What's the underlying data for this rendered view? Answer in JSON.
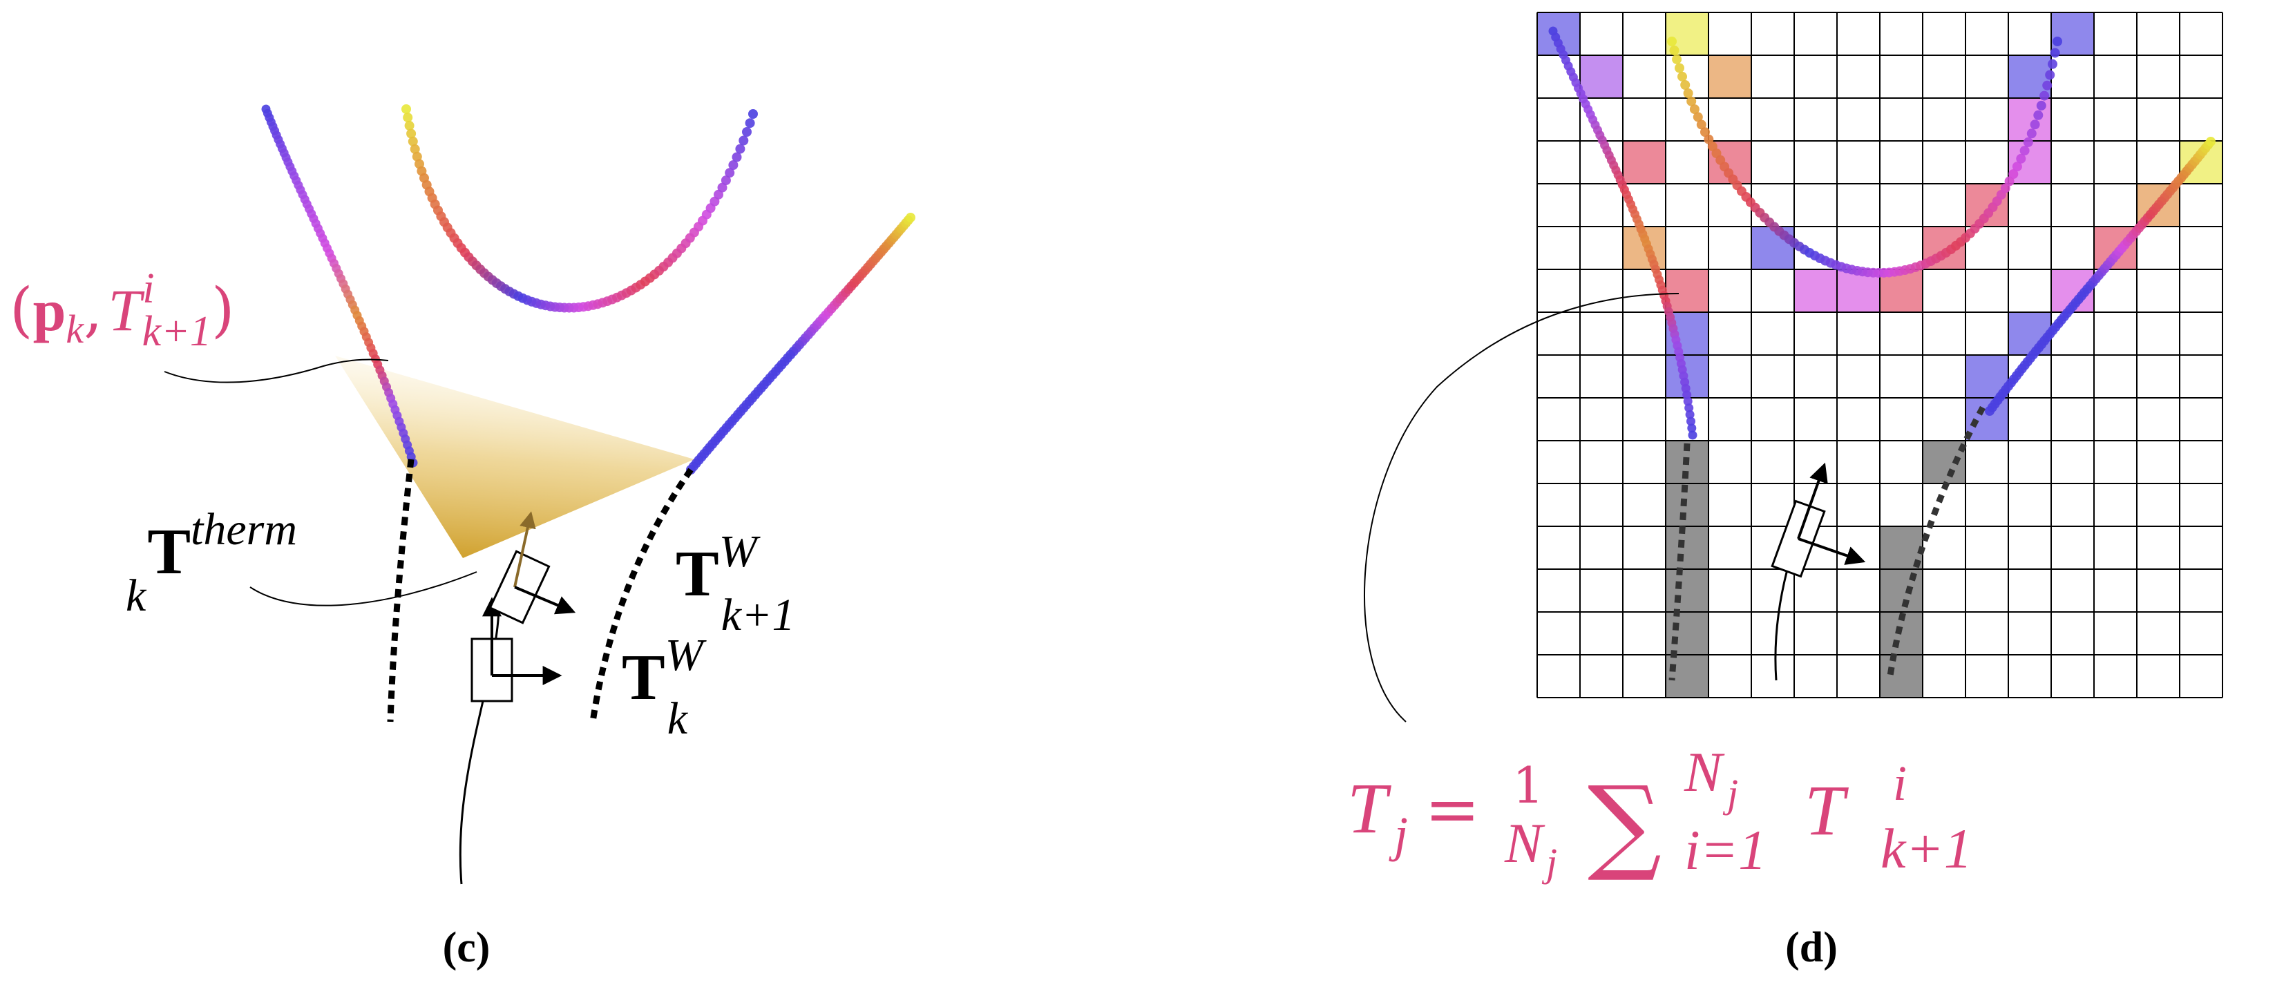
{
  "panels": [
    {
      "id": "c",
      "caption": "(c)"
    },
    {
      "id": "d",
      "caption": "(d)"
    }
  ],
  "labels": {
    "point_label": {
      "open": "(",
      "p": "p",
      "k": "k",
      "comma": ",",
      "T": "T",
      "i": "i",
      "sub": "k+1",
      "close": ")"
    },
    "therm": {
      "T": "T",
      "sup": "therm",
      "sub": "k"
    },
    "tw_k1": {
      "T": "T",
      "sup": "W",
      "sub": "k+1"
    },
    "tw_k": {
      "T": "T",
      "sup": "W",
      "sub": "k"
    },
    "formula": {
      "Tj": "T",
      "j": "j",
      "eq": "=",
      "num": "1",
      "den": "N",
      "den_sub": "j",
      "sum": "∑",
      "sum_top": "N",
      "sum_top_sub": "j",
      "sum_bot": "i=1",
      "T": "T",
      "T_sup": "i",
      "T_sub": "k+1"
    }
  },
  "colors": {
    "accent_pink": "#d9447a",
    "blue": "#4a3fe0",
    "purple": "#a04ae6",
    "magenta": "#d34be0",
    "red": "#e0405a",
    "orange": "#e08a3a",
    "yellow": "#e8e83a",
    "gray": "#8c8c8c",
    "fov": "#d8a52e"
  },
  "grid": {
    "cols": 16,
    "rows": 16,
    "cells": [
      {
        "c": 0,
        "r": 0,
        "color": "blue"
      },
      {
        "c": 1,
        "r": 1,
        "color": "purple"
      },
      {
        "c": 2,
        "r": 3,
        "color": "red"
      },
      {
        "c": 2,
        "r": 5,
        "color": "orange"
      },
      {
        "c": 3,
        "r": 6,
        "color": "red"
      },
      {
        "c": 3,
        "r": 7,
        "color": "blue"
      },
      {
        "c": 3,
        "r": 8,
        "color": "blue"
      },
      {
        "c": 3,
        "r": 0,
        "color": "yellow"
      },
      {
        "c": 4,
        "r": 1,
        "color": "orange"
      },
      {
        "c": 4,
        "r": 3,
        "color": "red"
      },
      {
        "c": 5,
        "r": 5,
        "color": "blue"
      },
      {
        "c": 6,
        "r": 6,
        "color": "magenta"
      },
      {
        "c": 7,
        "r": 6,
        "color": "magenta"
      },
      {
        "c": 8,
        "r": 6,
        "color": "red"
      },
      {
        "c": 9,
        "r": 5,
        "color": "red"
      },
      {
        "c": 10,
        "r": 4,
        "color": "red"
      },
      {
        "c": 11,
        "r": 3,
        "color": "magenta"
      },
      {
        "c": 11,
        "r": 2,
        "color": "magenta"
      },
      {
        "c": 11,
        "r": 1,
        "color": "blue"
      },
      {
        "c": 12,
        "r": 0,
        "color": "blue"
      },
      {
        "c": 13,
        "r": 5,
        "color": "red"
      },
      {
        "c": 12,
        "r": 6,
        "color": "magenta"
      },
      {
        "c": 11,
        "r": 7,
        "color": "blue"
      },
      {
        "c": 10,
        "r": 8,
        "color": "blue"
      },
      {
        "c": 10,
        "r": 9,
        "color": "blue"
      },
      {
        "c": 14,
        "r": 4,
        "color": "orange"
      },
      {
        "c": 15,
        "r": 3,
        "color": "yellow"
      },
      {
        "c": 3,
        "r": 10,
        "color": "gray"
      },
      {
        "c": 3,
        "r": 11,
        "color": "gray"
      },
      {
        "c": 3,
        "r": 12,
        "color": "gray"
      },
      {
        "c": 3,
        "r": 13,
        "color": "gray"
      },
      {
        "c": 3,
        "r": 14,
        "color": "gray"
      },
      {
        "c": 3,
        "r": 15,
        "color": "gray"
      },
      {
        "c": 9,
        "r": 10,
        "color": "gray"
      },
      {
        "c": 8,
        "r": 12,
        "color": "gray"
      },
      {
        "c": 8,
        "r": 13,
        "color": "gray"
      },
      {
        "c": 8,
        "r": 14,
        "color": "gray"
      },
      {
        "c": 8,
        "r": 15,
        "color": "gray"
      }
    ]
  }
}
